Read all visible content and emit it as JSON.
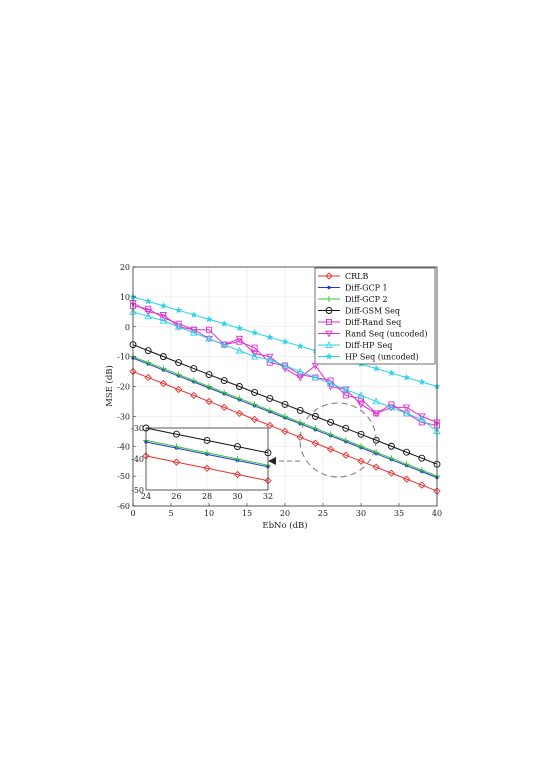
{
  "chart_data": {
    "type": "line",
    "title": "",
    "xlabel": "EbNo (dB)",
    "ylabel": "MSE (dB)",
    "xlim": [
      0,
      40
    ],
    "ylim": [
      -60,
      20
    ],
    "grid": true,
    "legend_position": "top-right",
    "x_ticks": [
      0,
      5,
      10,
      15,
      20,
      25,
      30,
      35,
      40
    ],
    "x_tick_labels": [
      "0",
      "5",
      "10",
      "15",
      "20",
      "25",
      "30",
      "35",
      "40"
    ],
    "y_ticks": [
      -60,
      -50,
      -40,
      -30,
      -20,
      -10,
      0,
      10,
      20
    ],
    "y_tick_labels": [
      "-60",
      "-50",
      "-40",
      "-30",
      "-20",
      "-10",
      "0",
      "10",
      "20"
    ],
    "x": [
      0,
      2,
      4,
      6,
      8,
      10,
      12,
      14,
      16,
      18,
      20,
      22,
      24,
      26,
      28,
      30,
      32,
      34,
      36,
      38,
      40
    ],
    "series": [
      {
        "name": "CRLB",
        "color": "#e8322f",
        "marker": "diamond",
        "values": [
          -15,
          -17,
          -19,
          -21,
          -23,
          -25,
          -27,
          -29,
          -31,
          -33,
          -35,
          -37,
          -39,
          -41,
          -43,
          -45,
          -47,
          -49,
          -51,
          -53,
          -55
        ]
      },
      {
        "name": "Diff-GCP 1",
        "color": "#1f3bd6",
        "marker": "dot",
        "values": [
          -10.5,
          -12.5,
          -14.5,
          -16.5,
          -18.5,
          -20.5,
          -22.5,
          -24.5,
          -26.5,
          -28.5,
          -30.5,
          -32.5,
          -34.5,
          -36.5,
          -38.5,
          -40.5,
          -42.5,
          -44.5,
          -46.5,
          -48.5,
          -50.5
        ]
      },
      {
        "name": "Diff-GCP 2",
        "color": "#38c238",
        "marker": "plus",
        "values": [
          -10,
          -12,
          -14,
          -16,
          -18,
          -20,
          -22,
          -24,
          -26,
          -28,
          -30,
          -32,
          -34,
          -36,
          -38,
          -40,
          -42,
          -44,
          -46,
          -48,
          -50
        ]
      },
      {
        "name": "Diff-GSM Seq",
        "color": "#111111",
        "marker": "circle",
        "values": [
          -6,
          -8,
          -10,
          -12,
          -14,
          -16,
          -18,
          -20,
          -22,
          -24,
          -26,
          -28,
          -30,
          -32,
          -34,
          -36,
          -38,
          -40,
          -42,
          -44,
          -46
        ]
      },
      {
        "name": "Diff-Rand Seq",
        "color": "#e030d0",
        "marker": "square",
        "values": [
          7,
          6,
          3,
          1,
          -1,
          -1,
          -6,
          -5,
          -7,
          -12,
          -13,
          -16,
          -17,
          -18,
          -23,
          -24,
          -29,
          -26,
          -29,
          -32,
          -33
        ]
      },
      {
        "name": "Rand Seq (uncoded)",
        "color": "#e030d0",
        "marker": "triangle-down",
        "values": [
          8,
          5,
          4,
          0,
          -1,
          -4,
          -6,
          -4,
          -9,
          -10,
          -14,
          -17,
          -13,
          -20,
          -21,
          -26,
          -29,
          -27,
          -27,
          -30,
          -32
        ]
      },
      {
        "name": "Diff-HP Seq",
        "color": "#2ad4e8",
        "marker": "triangle-up",
        "values": [
          5,
          3.5,
          2,
          0,
          -2,
          -4,
          -6,
          -8,
          -10,
          -11,
          -13,
          -15,
          -17,
          -19,
          -21,
          -23,
          -25,
          -27,
          -29,
          -31,
          -35
        ]
      },
      {
        "name": "HP Seq (uncoded)",
        "color": "#2ad4e8",
        "marker": "star",
        "values": [
          10,
          8.5,
          7,
          5.5,
          4,
          2.5,
          1,
          -0.5,
          -2,
          -3.5,
          -5,
          -6.5,
          -8,
          -9.5,
          -11,
          -12.5,
          -14,
          -15.5,
          -17,
          -18.5,
          -20
        ]
      }
    ],
    "inset": {
      "xlim": [
        24,
        32
      ],
      "ylim": [
        -50,
        -30
      ],
      "x_ticks": [
        24,
        26,
        28,
        30,
        32
      ],
      "x_tick_labels": [
        "24",
        "26",
        "28",
        "30",
        "32"
      ],
      "y_ticks": [
        -50,
        -40,
        -30
      ],
      "y_tick_labels": [
        "-50",
        "-40",
        "-30"
      ],
      "series_names": [
        "CRLB",
        "Diff-GCP 1",
        "Diff-GCP 2",
        "Diff-GSM Seq"
      ]
    }
  }
}
